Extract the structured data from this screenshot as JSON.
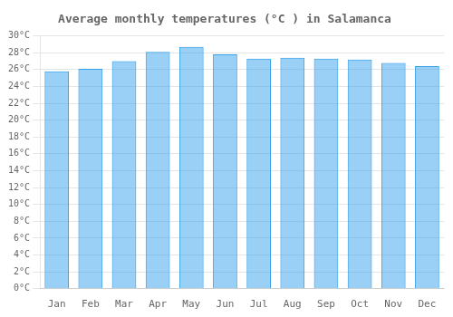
{
  "chart_data": {
    "type": "bar",
    "title": "Average monthly temperatures (°C ) in Salamanca",
    "categories": [
      "Jan",
      "Feb",
      "Mar",
      "Apr",
      "May",
      "Jun",
      "Jul",
      "Aug",
      "Sep",
      "Oct",
      "Nov",
      "Dec"
    ],
    "values": [
      25.8,
      26.1,
      27.0,
      28.1,
      28.7,
      27.8,
      27.3,
      27.4,
      27.3,
      27.2,
      26.8,
      26.4
    ],
    "ylim": [
      0,
      30
    ],
    "yticks": [
      {
        "value": 0,
        "label": "0°C"
      },
      {
        "value": 2,
        "label": "2°C"
      },
      {
        "value": 4,
        "label": "4°C"
      },
      {
        "value": 6,
        "label": "6°C"
      },
      {
        "value": 8,
        "label": "8°C"
      },
      {
        "value": 10,
        "label": "10°C"
      },
      {
        "value": 12,
        "label": "12°C"
      },
      {
        "value": 14,
        "label": "14°C"
      },
      {
        "value": 16,
        "label": "16°C"
      },
      {
        "value": 18,
        "label": "18°C"
      },
      {
        "value": 20,
        "label": "20°C"
      },
      {
        "value": 22,
        "label": "22°C"
      },
      {
        "value": 24,
        "label": "24°C"
      },
      {
        "value": 26,
        "label": "26°C"
      },
      {
        "value": 28,
        "label": "28°C"
      },
      {
        "value": 30,
        "label": "30°C"
      }
    ],
    "grid": true
  }
}
